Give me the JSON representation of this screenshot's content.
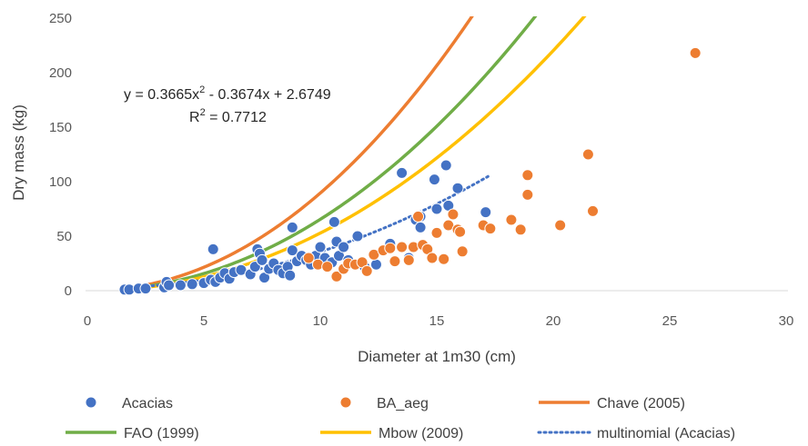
{
  "chart_data": {
    "type": "scatter",
    "title": "",
    "xlabel": "Diameter at 1m30 (cm)",
    "ylabel": "Dry mass (kg)",
    "xlim": [
      0,
      30
    ],
    "ylim": [
      0,
      250
    ],
    "xticks": [
      0,
      5,
      10,
      15,
      20,
      25,
      30
    ],
    "yticks": [
      0,
      50,
      100,
      150,
      200,
      250
    ],
    "grid": false,
    "legend_position": "bottom",
    "annotation": {
      "equation_prefix": "y = 0.3665x",
      "equation_suffix": " - 0.3674x + 2.6749",
      "r2_prefix": "R",
      "r2_suffix": " = 0.7712",
      "superscript": "2"
    },
    "series": [
      {
        "name": "Acacias",
        "kind": "scatter",
        "color": "#4472c4",
        "points": [
          [
            1.6,
            1
          ],
          [
            1.8,
            1
          ],
          [
            2.2,
            2
          ],
          [
            2.5,
            2
          ],
          [
            3.3,
            3
          ],
          [
            3.4,
            8
          ],
          [
            3.5,
            5
          ],
          [
            4.0,
            5
          ],
          [
            4.5,
            6
          ],
          [
            5.0,
            7
          ],
          [
            5.3,
            10
          ],
          [
            5.4,
            38
          ],
          [
            5.5,
            8
          ],
          [
            5.7,
            12
          ],
          [
            5.9,
            16
          ],
          [
            6.1,
            11
          ],
          [
            6.3,
            17
          ],
          [
            6.6,
            19
          ],
          [
            7.0,
            15
          ],
          [
            7.2,
            22
          ],
          [
            7.3,
            38
          ],
          [
            7.4,
            34
          ],
          [
            7.5,
            28
          ],
          [
            7.6,
            12
          ],
          [
            7.8,
            20
          ],
          [
            8.0,
            25
          ],
          [
            8.2,
            19
          ],
          [
            8.4,
            16
          ],
          [
            8.6,
            22
          ],
          [
            8.7,
            14
          ],
          [
            8.8,
            37
          ],
          [
            8.8,
            58
          ],
          [
            9.0,
            27
          ],
          [
            9.2,
            32
          ],
          [
            9.4,
            28
          ],
          [
            9.6,
            24
          ],
          [
            9.8,
            32
          ],
          [
            10.0,
            40
          ],
          [
            10.2,
            30
          ],
          [
            10.5,
            26
          ],
          [
            10.6,
            63
          ],
          [
            10.7,
            45
          ],
          [
            10.8,
            32
          ],
          [
            11.0,
            40
          ],
          [
            11.2,
            28
          ],
          [
            11.6,
            50
          ],
          [
            11.9,
            22
          ],
          [
            12.4,
            24
          ],
          [
            13.0,
            43
          ],
          [
            13.5,
            108
          ],
          [
            13.8,
            30
          ],
          [
            14.1,
            65
          ],
          [
            14.3,
            68
          ],
          [
            14.3,
            58
          ],
          [
            14.9,
            102
          ],
          [
            15.0,
            75
          ],
          [
            15.4,
            115
          ],
          [
            15.5,
            78
          ],
          [
            15.9,
            94
          ],
          [
            17.1,
            72
          ]
        ]
      },
      {
        "name": "BA_aeg",
        "kind": "scatter",
        "color": "#ed7d31",
        "points": [
          [
            9.5,
            30
          ],
          [
            9.9,
            24
          ],
          [
            10.3,
            22
          ],
          [
            10.7,
            13
          ],
          [
            11.0,
            20
          ],
          [
            11.2,
            25
          ],
          [
            11.5,
            24
          ],
          [
            11.8,
            26
          ],
          [
            12.0,
            18
          ],
          [
            12.3,
            33
          ],
          [
            12.7,
            37
          ],
          [
            13.0,
            39
          ],
          [
            13.2,
            27
          ],
          [
            13.5,
            40
          ],
          [
            13.8,
            28
          ],
          [
            14.0,
            40
          ],
          [
            14.2,
            68
          ],
          [
            14.4,
            42
          ],
          [
            14.6,
            38
          ],
          [
            14.8,
            30
          ],
          [
            15.0,
            53
          ],
          [
            15.3,
            29
          ],
          [
            15.5,
            60
          ],
          [
            15.7,
            70
          ],
          [
            15.9,
            56
          ],
          [
            16.0,
            54
          ],
          [
            16.1,
            36
          ],
          [
            17.0,
            60
          ],
          [
            17.3,
            57
          ],
          [
            18.2,
            65
          ],
          [
            18.6,
            56
          ],
          [
            18.9,
            106
          ],
          [
            18.9,
            88
          ],
          [
            20.3,
            60
          ],
          [
            21.5,
            125
          ],
          [
            21.7,
            73
          ],
          [
            26.1,
            218
          ]
        ]
      },
      {
        "name": "Chave (2005)",
        "kind": "curve",
        "color": "#ed7d31",
        "coef": 0.78,
        "exp": 2.06,
        "x_range": [
          2,
          17.7
        ]
      },
      {
        "name": "FAO (1999)",
        "kind": "curve",
        "color": "#70ad47",
        "coef": 0.57,
        "exp": 2.06,
        "x_range": [
          2,
          20.7
        ]
      },
      {
        "name": "Mbow (2009)",
        "kind": "curve",
        "color": "#ffc000",
        "coef": 0.46,
        "exp": 2.06,
        "x_range": [
          2,
          23.0
        ]
      },
      {
        "name": "multinomial (Acacias)",
        "kind": "trendline",
        "color": "#4472c4",
        "a": 0.3665,
        "b": -0.3674,
        "c": 2.6749,
        "x_range": [
          1.6,
          17.2
        ]
      }
    ]
  }
}
